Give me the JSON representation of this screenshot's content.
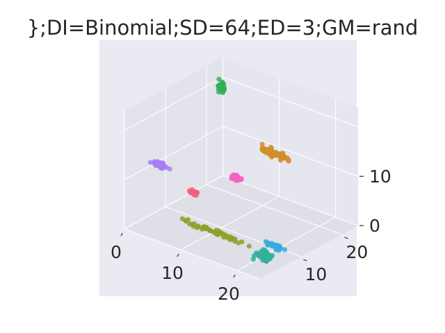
{
  "chart_data": {
    "type": "scatter3d",
    "title": "};DI=Binomial;SD=64;ED=3;GM=rand",
    "xlabel": "",
    "ylabel": "",
    "zlabel": "",
    "xlim": [
      0,
      24
    ],
    "ylim": [
      0,
      24
    ],
    "zlim": [
      0,
      24
    ],
    "xticks": [
      "0",
      "10",
      "20"
    ],
    "yticks": [
      "10",
      "20"
    ],
    "zticks": [
      "0",
      "10"
    ],
    "grid": true,
    "background": "#eaeaf2",
    "pane_colors": [
      "#e3e3eb",
      "#dfdfe7",
      "#e6e6ee"
    ],
    "clusters": [
      {
        "color": "#31b056",
        "center": [
          2.6,
          20.0,
          21.0
        ],
        "spread": [
          0.4,
          0.3,
          0.8
        ],
        "n": 35
      },
      {
        "color": "#a67ff3",
        "center": [
          4.8,
          2.2,
          14.0
        ],
        "spread": [
          0.9,
          0.25,
          0.35
        ],
        "n": 45
      },
      {
        "color": "#f361c3",
        "center": [
          11.5,
          11.5,
          10.0
        ],
        "spread": [
          0.6,
          0.3,
          0.3
        ],
        "n": 35
      },
      {
        "color": "#f2617a",
        "center": [
          7.0,
          7.3,
          7.0
        ],
        "spread": [
          0.6,
          0.2,
          0.2
        ],
        "n": 30
      },
      {
        "color": "#d18e2c",
        "center": [
          14.0,
          17.3,
          13.5
        ],
        "spread": [
          1.6,
          0.5,
          0.5
        ],
        "n": 70
      },
      {
        "color": "#8ea12a",
        "center": [
          12.0,
          5.5,
          2.0
        ],
        "spread": [
          3.5,
          0.3,
          0.3
        ],
        "n": 55
      },
      {
        "color": "#36aadd",
        "center": [
          20.0,
          9.0,
          1.0
        ],
        "spread": [
          1.2,
          0.4,
          0.25
        ],
        "n": 30
      },
      {
        "color": "#33b09b",
        "center": [
          19.0,
          8.0,
          -1.0
        ],
        "spread": [
          0.9,
          0.5,
          0.6
        ],
        "n": 65
      }
    ]
  }
}
